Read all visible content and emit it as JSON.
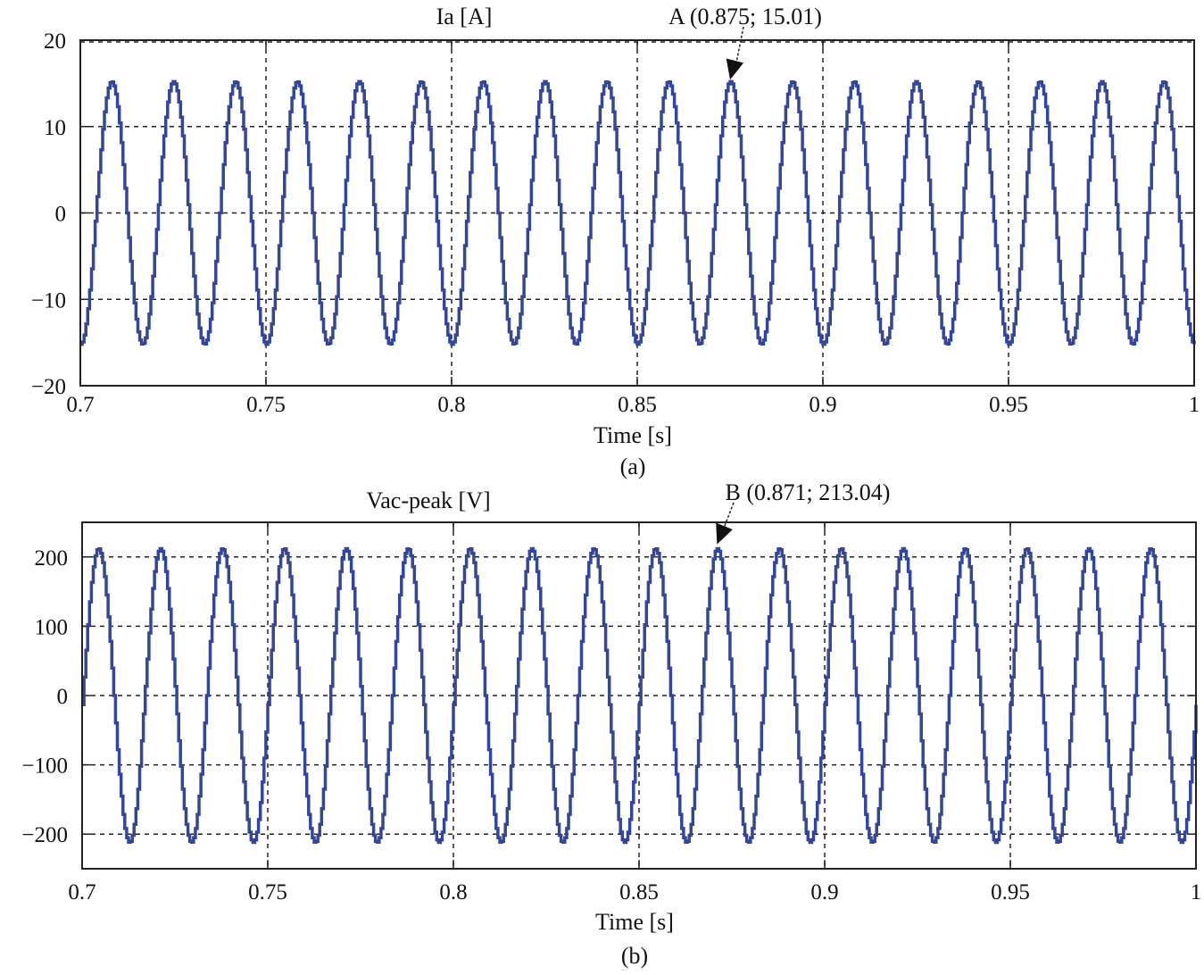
{
  "chart_data": [
    {
      "type": "line",
      "title": "Ia [A]",
      "xlabel": "Time [s]",
      "caption": "(a)",
      "xlim": [
        0.7,
        1.0
      ],
      "ylim": [
        -20,
        20
      ],
      "xticks": [
        0.7,
        0.75,
        0.8,
        0.85,
        0.9,
        0.95,
        1
      ],
      "xtick_labels": [
        "0.7",
        "0.75",
        "0.8",
        "0.85",
        "0.9",
        "0.95",
        "1"
      ],
      "yticks": [
        20,
        10,
        0,
        -10,
        -20
      ],
      "ytick_labels": [
        "20",
        "10",
        "0",
        "−10",
        "−20"
      ],
      "grid": true,
      "line_color": "#34469a",
      "waveform": {
        "shape": "stepped-sine",
        "amplitude": 15.2,
        "frequency_hz": 60,
        "peak_time": 0.875,
        "step_s": 0.0005
      },
      "annotation": {
        "text": "A (0.875; 15.01)",
        "x": 0.875,
        "y": 15.01
      }
    },
    {
      "type": "line",
      "title": "Vac-peak [V]",
      "xlabel": "Time [s]",
      "caption": "(b)",
      "xlim": [
        0.7,
        1.0
      ],
      "ylim": [
        -250,
        250
      ],
      "xticks": [
        0.7,
        0.75,
        0.8,
        0.85,
        0.9,
        0.95,
        1
      ],
      "xtick_labels": [
        "0.7",
        "0.75",
        "0.8",
        "0.85",
        "0.9",
        "0.95",
        "1"
      ],
      "yticks": [
        200,
        100,
        0,
        -100,
        -200
      ],
      "ytick_labels": [
        "200",
        "100",
        "0",
        "−100",
        "−200"
      ],
      "grid": true,
      "line_color": "#34469a",
      "waveform": {
        "shape": "stepped-sine",
        "amplitude": 212,
        "frequency_hz": 60,
        "peak_time": 0.871,
        "step_s": 0.0005
      },
      "annotation": {
        "text": "B (0.871; 213.04)",
        "x": 0.871,
        "y": 213.04
      }
    }
  ]
}
